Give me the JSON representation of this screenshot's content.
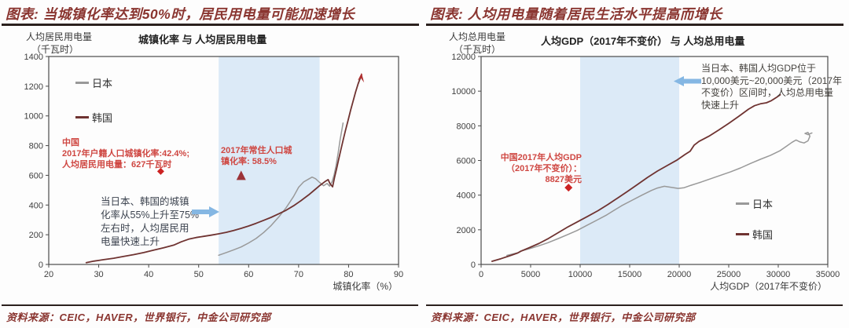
{
  "colors": {
    "header_red": "#8a3530",
    "annotation_red": "#cf4742",
    "marker_red": "#cc2222",
    "marker_maroon": "#9c3338",
    "band_blue": "#dceaf7",
    "arrow_blue": "#85b7e3",
    "japan_gray": "#999999",
    "korea_maroon": "#6f3331",
    "frame": "#4a4a4a",
    "tick_text": "#3f3f3f",
    "rule_dark": "#2b211e",
    "note_dark": "#3d4450"
  },
  "left": {
    "header": "图表: 当城镇化率达到50%时，居民用电量可能加速增长",
    "title": "城镇化率 与 人均居民用电量",
    "axis": {
      "y_label_1": "人均居民用电量",
      "y_label_2": "（千瓦时）",
      "x_label": "城镇化率（%）"
    },
    "legend": {
      "japan": "日本",
      "korea": "韩国"
    },
    "notes": {
      "china": "中国\n2017年户籍人口城镇化率:42.4%;\n人均居民用电量：627千瓦时",
      "resident": "2017年常住人口城\n镇化率: 58.5%",
      "band": "当日本、韩国的城镇\n化率从55%上升至75%\n左右时，人均居民用\n电量快速上升"
    },
    "source": "资料来源：CEIC，HAVER，世界银行，中金公司研究部"
  },
  "right": {
    "header": "图表: 人均用电量随着居民生活水平提高而增长",
    "title": "人均GDP（2017年不变价） 与 人均总用电量",
    "axis": {
      "y_label_1": "人均总用电量",
      "y_label_2": "（千瓦时）",
      "x_label": "人均GDP（2017年不变价）"
    },
    "legend": {
      "japan": "日本",
      "korea": "韩国"
    },
    "notes": {
      "gdp_range": "当日本、韩国人均GDP位于\n10,000美元~20,000美元（2017年\n不变价）区间时，人均总用电量\n快速上升",
      "china_gdp": "中国2017年人均GDP\n（2017年不变价）：\n8827美元"
    },
    "source": "资料来源：CEIC，HAVER，世界银行，中金公司研究部"
  },
  "chart_data": [
    {
      "id": "urbanization-electricity",
      "type": "line",
      "title": "城镇化率 与 人均居民用电量",
      "xlabel": "城镇化率（%）",
      "ylabel": "人均居民用电量（千瓦时）",
      "xlim": [
        20,
        90
      ],
      "ylim": [
        0,
        1400
      ],
      "x_ticks": [
        20,
        30,
        40,
        50,
        60,
        70,
        80,
        90
      ],
      "y_ticks": [
        0,
        200,
        400,
        600,
        800,
        1000,
        1200,
        1400
      ],
      "grid": false,
      "legend_position": "upper-left",
      "band": {
        "x0": 54,
        "x1": 74.2,
        "color": "#dceaf7",
        "meaning": "urbanization rising from ~55% to ~75%"
      },
      "series": [
        {
          "name": "日本",
          "color": "#999999",
          "width": 1.5,
          "points": [
            [
              54,
              62
            ],
            [
              55.5,
              80
            ],
            [
              57,
              98
            ],
            [
              58.5,
              118
            ],
            [
              60,
              145
            ],
            [
              61.5,
              175
            ],
            [
              63,
              215
            ],
            [
              64.5,
              262
            ],
            [
              66,
              318
            ],
            [
              67.5,
              382
            ],
            [
              69,
              458
            ],
            [
              70,
              520
            ],
            [
              71,
              555
            ],
            [
              72,
              575
            ],
            [
              72.7,
              588
            ],
            [
              73.4,
              577
            ],
            [
              74.2,
              552
            ],
            [
              75,
              530
            ],
            [
              75.7,
              545
            ],
            [
              76.2,
              527
            ],
            [
              76.7,
              558
            ],
            [
              77.1,
              603
            ],
            [
              77.5,
              665
            ],
            [
              77.9,
              748
            ],
            [
              78.3,
              838
            ],
            [
              78.7,
              915
            ],
            [
              78.9,
              952
            ]
          ]
        },
        {
          "name": "韩国",
          "color": "#6f3331",
          "width": 1.8,
          "points": [
            [
              27.5,
              12
            ],
            [
              29,
              22
            ],
            [
              31,
              32
            ],
            [
              33,
              42
            ],
            [
              35,
              54
            ],
            [
              37,
              66
            ],
            [
              39,
              80
            ],
            [
              41,
              96
            ],
            [
              43,
              112
            ],
            [
              45,
              130
            ],
            [
              46.5,
              152
            ],
            [
              48,
              170
            ],
            [
              49.5,
              181
            ],
            [
              51,
              189
            ],
            [
              52.5,
              197
            ],
            [
              54,
              206
            ],
            [
              55.5,
              216
            ],
            [
              57,
              229
            ],
            [
              58.5,
              243
            ],
            [
              60,
              259
            ],
            [
              61.5,
              277
            ],
            [
              63,
              297
            ],
            [
              64.5,
              317
            ],
            [
              66,
              340
            ],
            [
              67.5,
              365
            ],
            [
              69,
              395
            ],
            [
              70.5,
              430
            ],
            [
              72,
              468
            ],
            [
              73.2,
              502
            ],
            [
              74.3,
              533
            ],
            [
              75.2,
              556
            ],
            [
              75.9,
              571
            ],
            [
              76.3,
              543
            ],
            [
              76.8,
              523
            ],
            [
              77.2,
              587
            ],
            [
              77.6,
              645
            ],
            [
              78,
              705
            ],
            [
              78.4,
              765
            ],
            [
              78.9,
              835
            ],
            [
              79.4,
              905
            ],
            [
              79.9,
              970
            ],
            [
              80.4,
              1038
            ],
            [
              80.9,
              1100
            ],
            [
              81.4,
              1160
            ],
            [
              81.9,
              1215
            ],
            [
              82.3,
              1252
            ],
            [
              82.6,
              1278
            ]
          ]
        }
      ],
      "markers": [
        {
          "shape": "diamond",
          "x": 42.4,
          "y": 627,
          "color": "#cc2222",
          "size": 4.5,
          "meaning": "中国 2017 户籍人口城镇化率 42.4% / 627千瓦时"
        },
        {
          "shape": "triangle",
          "x": 58.5,
          "y": 600,
          "color": "#9c3338",
          "size": 6,
          "meaning": "2017年常住人口城镇化率 58.5%"
        },
        {
          "shape": "arrowhead",
          "x": 82.6,
          "y": 1290,
          "color": "#b03030",
          "size": 4,
          "meaning": "korea line end arrow"
        }
      ]
    },
    {
      "id": "gdp-electricity",
      "type": "line",
      "title": "人均GDP（2017年不变价） 与 人均总用电量",
      "xlabel": "人均GDP（2017年不变价）",
      "ylabel": "人均总用电量（千瓦时）",
      "xlim": [
        0,
        35000
      ],
      "ylim": [
        0,
        12000
      ],
      "x_ticks": [
        0,
        5000,
        10000,
        15000,
        20000,
        25000,
        30000,
        35000
      ],
      "y_ticks": [
        0,
        2000,
        4000,
        6000,
        8000,
        10000,
        12000
      ],
      "grid": false,
      "legend_position": "right",
      "band": {
        "x0": 10000,
        "x1": 20000,
        "color": "#dceaf7",
        "meaning": "GDP per capita 10,000–20,000 USD (2017 constant)"
      },
      "series": [
        {
          "name": "日本",
          "color": "#999999",
          "width": 1.5,
          "points": [
            [
              2600,
              520
            ],
            [
              3300,
              620
            ],
            [
              3800,
              690
            ],
            [
              4100,
              790
            ],
            [
              4900,
              910
            ],
            [
              5700,
              1050
            ],
            [
              6700,
              1240
            ],
            [
              7700,
              1470
            ],
            [
              8700,
              1710
            ],
            [
              9700,
              1960
            ],
            [
              10700,
              2260
            ],
            [
              11700,
              2560
            ],
            [
              12700,
              2860
            ],
            [
              13400,
              3110
            ],
            [
              14200,
              3390
            ],
            [
              15200,
              3690
            ],
            [
              16200,
              3990
            ],
            [
              17200,
              4270
            ],
            [
              17800,
              4410
            ],
            [
              18500,
              4510
            ],
            [
              19200,
              4450
            ],
            [
              19900,
              4390
            ],
            [
              20500,
              4430
            ],
            [
              21200,
              4570
            ],
            [
              22200,
              4750
            ],
            [
              23200,
              4950
            ],
            [
              24200,
              5150
            ],
            [
              25200,
              5350
            ],
            [
              26200,
              5570
            ],
            [
              27200,
              5830
            ],
            [
              28200,
              6070
            ],
            [
              29200,
              6290
            ],
            [
              30200,
              6570
            ],
            [
              30800,
              6810
            ],
            [
              31400,
              7050
            ],
            [
              31800,
              7180
            ],
            [
              32200,
              7070
            ],
            [
              32600,
              7010
            ],
            [
              33000,
              7130
            ],
            [
              33200,
              7400
            ],
            [
              33000,
              7620
            ],
            [
              32700,
              7560
            ],
            [
              33000,
              7490
            ],
            [
              33400,
              7590
            ]
          ]
        },
        {
          "name": "韩国",
          "color": "#6f3331",
          "width": 1.8,
          "points": [
            [
              1100,
              180
            ],
            [
              2000,
              330
            ],
            [
              3000,
              520
            ],
            [
              3700,
              660
            ],
            [
              4000,
              760
            ],
            [
              4800,
              950
            ],
            [
              5800,
              1200
            ],
            [
              6800,
              1500
            ],
            [
              7800,
              1840
            ],
            [
              8800,
              2180
            ],
            [
              9800,
              2480
            ],
            [
              10800,
              2790
            ],
            [
              11800,
              3100
            ],
            [
              12800,
              3460
            ],
            [
              13800,
              3840
            ],
            [
              14800,
              4220
            ],
            [
              15800,
              4620
            ],
            [
              16800,
              5020
            ],
            [
              17800,
              5390
            ],
            [
              18800,
              5710
            ],
            [
              19800,
              6030
            ],
            [
              20600,
              6350
            ],
            [
              21100,
              6530
            ],
            [
              21500,
              6880
            ],
            [
              22000,
              7100
            ],
            [
              23000,
              7400
            ],
            [
              24000,
              7760
            ],
            [
              25000,
              8140
            ],
            [
              26000,
              8540
            ],
            [
              27000,
              8960
            ],
            [
              27600,
              9160
            ],
            [
              28200,
              9270
            ],
            [
              28800,
              9330
            ],
            [
              29300,
              9450
            ],
            [
              29800,
              9630
            ],
            [
              30200,
              9790
            ]
          ]
        }
      ],
      "markers": [
        {
          "shape": "diamond",
          "x": 8827,
          "y": 4430,
          "color": "#cc2222",
          "size": 5,
          "meaning": "中国2017年人均GDP 8827美元"
        }
      ]
    }
  ]
}
